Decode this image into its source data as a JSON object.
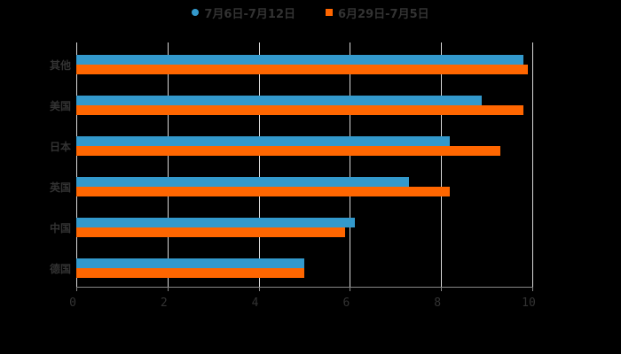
{
  "legend": {
    "series1": "7月6日-7月12日",
    "series2": "6月29日-7月5日"
  },
  "colors": {
    "series1": "#3399cc",
    "series2": "#ff6600"
  },
  "axis": {
    "ticks": [
      "0",
      "2",
      "4",
      "6",
      "8",
      "10"
    ]
  },
  "categories": [
    "其他",
    "美国",
    "日本",
    "英国",
    "中国",
    "德国"
  ],
  "chart_data": {
    "type": "bar",
    "orientation": "horizontal",
    "title": "",
    "xlabel": "",
    "ylabel": "",
    "xlim": [
      0,
      10
    ],
    "grid": true,
    "legend_position": "top",
    "categories": [
      "其他",
      "美国",
      "日本",
      "英国",
      "中国",
      "德国"
    ],
    "series": [
      {
        "name": "7月6日-7月12日",
        "color": "#3399cc",
        "values": [
          9.8,
          8.9,
          8.2,
          7.3,
          6.1,
          5.0
        ]
      },
      {
        "name": "6月29日-7月5日",
        "color": "#ff6600",
        "values": [
          9.9,
          9.8,
          9.3,
          8.2,
          5.9,
          5.0
        ]
      }
    ],
    "tick_labels": [
      "0",
      "2",
      "4",
      "6",
      "8",
      "10"
    ]
  }
}
